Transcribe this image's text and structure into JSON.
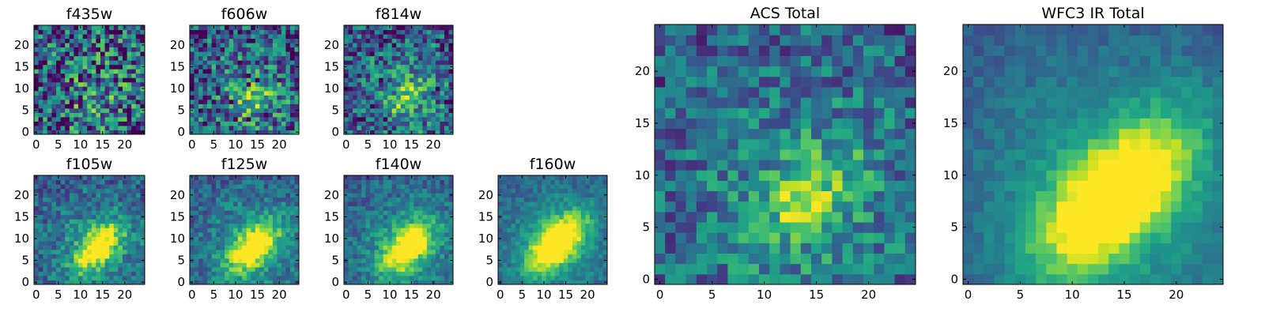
{
  "chart_data": [
    {
      "type": "heatmap",
      "title": "f435w",
      "xlim": [
        0,
        24
      ],
      "ylim": [
        0,
        24
      ],
      "xticks": [
        0,
        5,
        10,
        15,
        20
      ],
      "yticks": [
        0,
        5,
        10,
        15,
        20
      ],
      "colormap": "viridis",
      "source_peak": [
        14,
        8
      ],
      "source_strength": 0.12,
      "noise": 0.55,
      "source_sigma": [
        3.5,
        2.2
      ]
    },
    {
      "type": "heatmap",
      "title": "f606w",
      "xlim": [
        0,
        24
      ],
      "ylim": [
        0,
        24
      ],
      "xticks": [
        0,
        5,
        10,
        15,
        20
      ],
      "yticks": [
        0,
        5,
        10,
        15,
        20
      ],
      "colormap": "viridis",
      "source_peak": [
        14,
        7
      ],
      "source_strength": 0.3,
      "noise": 0.45,
      "source_sigma": [
        3.5,
        2.2
      ]
    },
    {
      "type": "heatmap",
      "title": "f814w",
      "xlim": [
        0,
        24
      ],
      "ylim": [
        0,
        24
      ],
      "xticks": [
        0,
        5,
        10,
        15,
        20
      ],
      "yticks": [
        0,
        5,
        10,
        15,
        20
      ],
      "colormap": "viridis",
      "source_peak": [
        14,
        8
      ],
      "source_strength": 0.4,
      "noise": 0.4,
      "source_sigma": [
        3.0,
        2.0
      ]
    },
    {
      "type": "heatmap",
      "title": "f105w",
      "xlim": [
        0,
        24
      ],
      "ylim": [
        0,
        24
      ],
      "xticks": [
        0,
        5,
        10,
        15,
        20
      ],
      "yticks": [
        0,
        5,
        10,
        15,
        20
      ],
      "colormap": "viridis",
      "source_peak": [
        14,
        8
      ],
      "source_strength": 0.7,
      "noise": 0.25,
      "source_sigma": [
        4.5,
        2.4
      ]
    },
    {
      "type": "heatmap",
      "title": "f125w",
      "xlim": [
        0,
        24
      ],
      "ylim": [
        0,
        24
      ],
      "xticks": [
        0,
        5,
        10,
        15,
        20
      ],
      "yticks": [
        0,
        5,
        10,
        15,
        20
      ],
      "colormap": "viridis",
      "source_peak": [
        14,
        8
      ],
      "source_strength": 0.7,
      "noise": 0.22,
      "source_sigma": [
        5.0,
        2.6
      ]
    },
    {
      "type": "heatmap",
      "title": "f140w",
      "xlim": [
        0,
        24
      ],
      "ylim": [
        0,
        24
      ],
      "xticks": [
        0,
        5,
        10,
        15,
        20
      ],
      "yticks": [
        0,
        5,
        10,
        15,
        20
      ],
      "colormap": "viridis",
      "source_peak": [
        14,
        8
      ],
      "source_strength": 0.75,
      "noise": 0.2,
      "source_sigma": [
        5.0,
        2.6
      ]
    },
    {
      "type": "heatmap",
      "title": "f160w",
      "xlim": [
        0,
        24
      ],
      "ylim": [
        0,
        24
      ],
      "xticks": [
        0,
        5,
        10,
        15,
        20
      ],
      "yticks": [
        0,
        5,
        10,
        15,
        20
      ],
      "colormap": "viridis",
      "source_peak": [
        13,
        9
      ],
      "source_strength": 0.85,
      "noise": 0.15,
      "source_sigma": [
        5.5,
        2.8
      ]
    },
    {
      "type": "heatmap",
      "title": "ACS Total",
      "xlim": [
        0,
        24
      ],
      "ylim": [
        0,
        24
      ],
      "xticks": [
        0,
        5,
        10,
        15,
        20
      ],
      "yticks": [
        0,
        5,
        10,
        15,
        20
      ],
      "colormap": "viridis",
      "source_peak": [
        14,
        8
      ],
      "source_strength": 0.35,
      "noise": 0.3,
      "source_sigma": [
        4.0,
        2.5
      ]
    },
    {
      "type": "heatmap",
      "title": "WFC3 IR Total",
      "xlim": [
        0,
        24
      ],
      "ylim": [
        0,
        24
      ],
      "xticks": [
        0,
        5,
        10,
        15,
        20
      ],
      "yticks": [
        0,
        5,
        10,
        15,
        20
      ],
      "colormap": "viridis",
      "source_peak": [
        14,
        8
      ],
      "source_strength": 0.85,
      "noise": 0.1,
      "source_sigma": [
        6.0,
        3.0
      ]
    }
  ]
}
